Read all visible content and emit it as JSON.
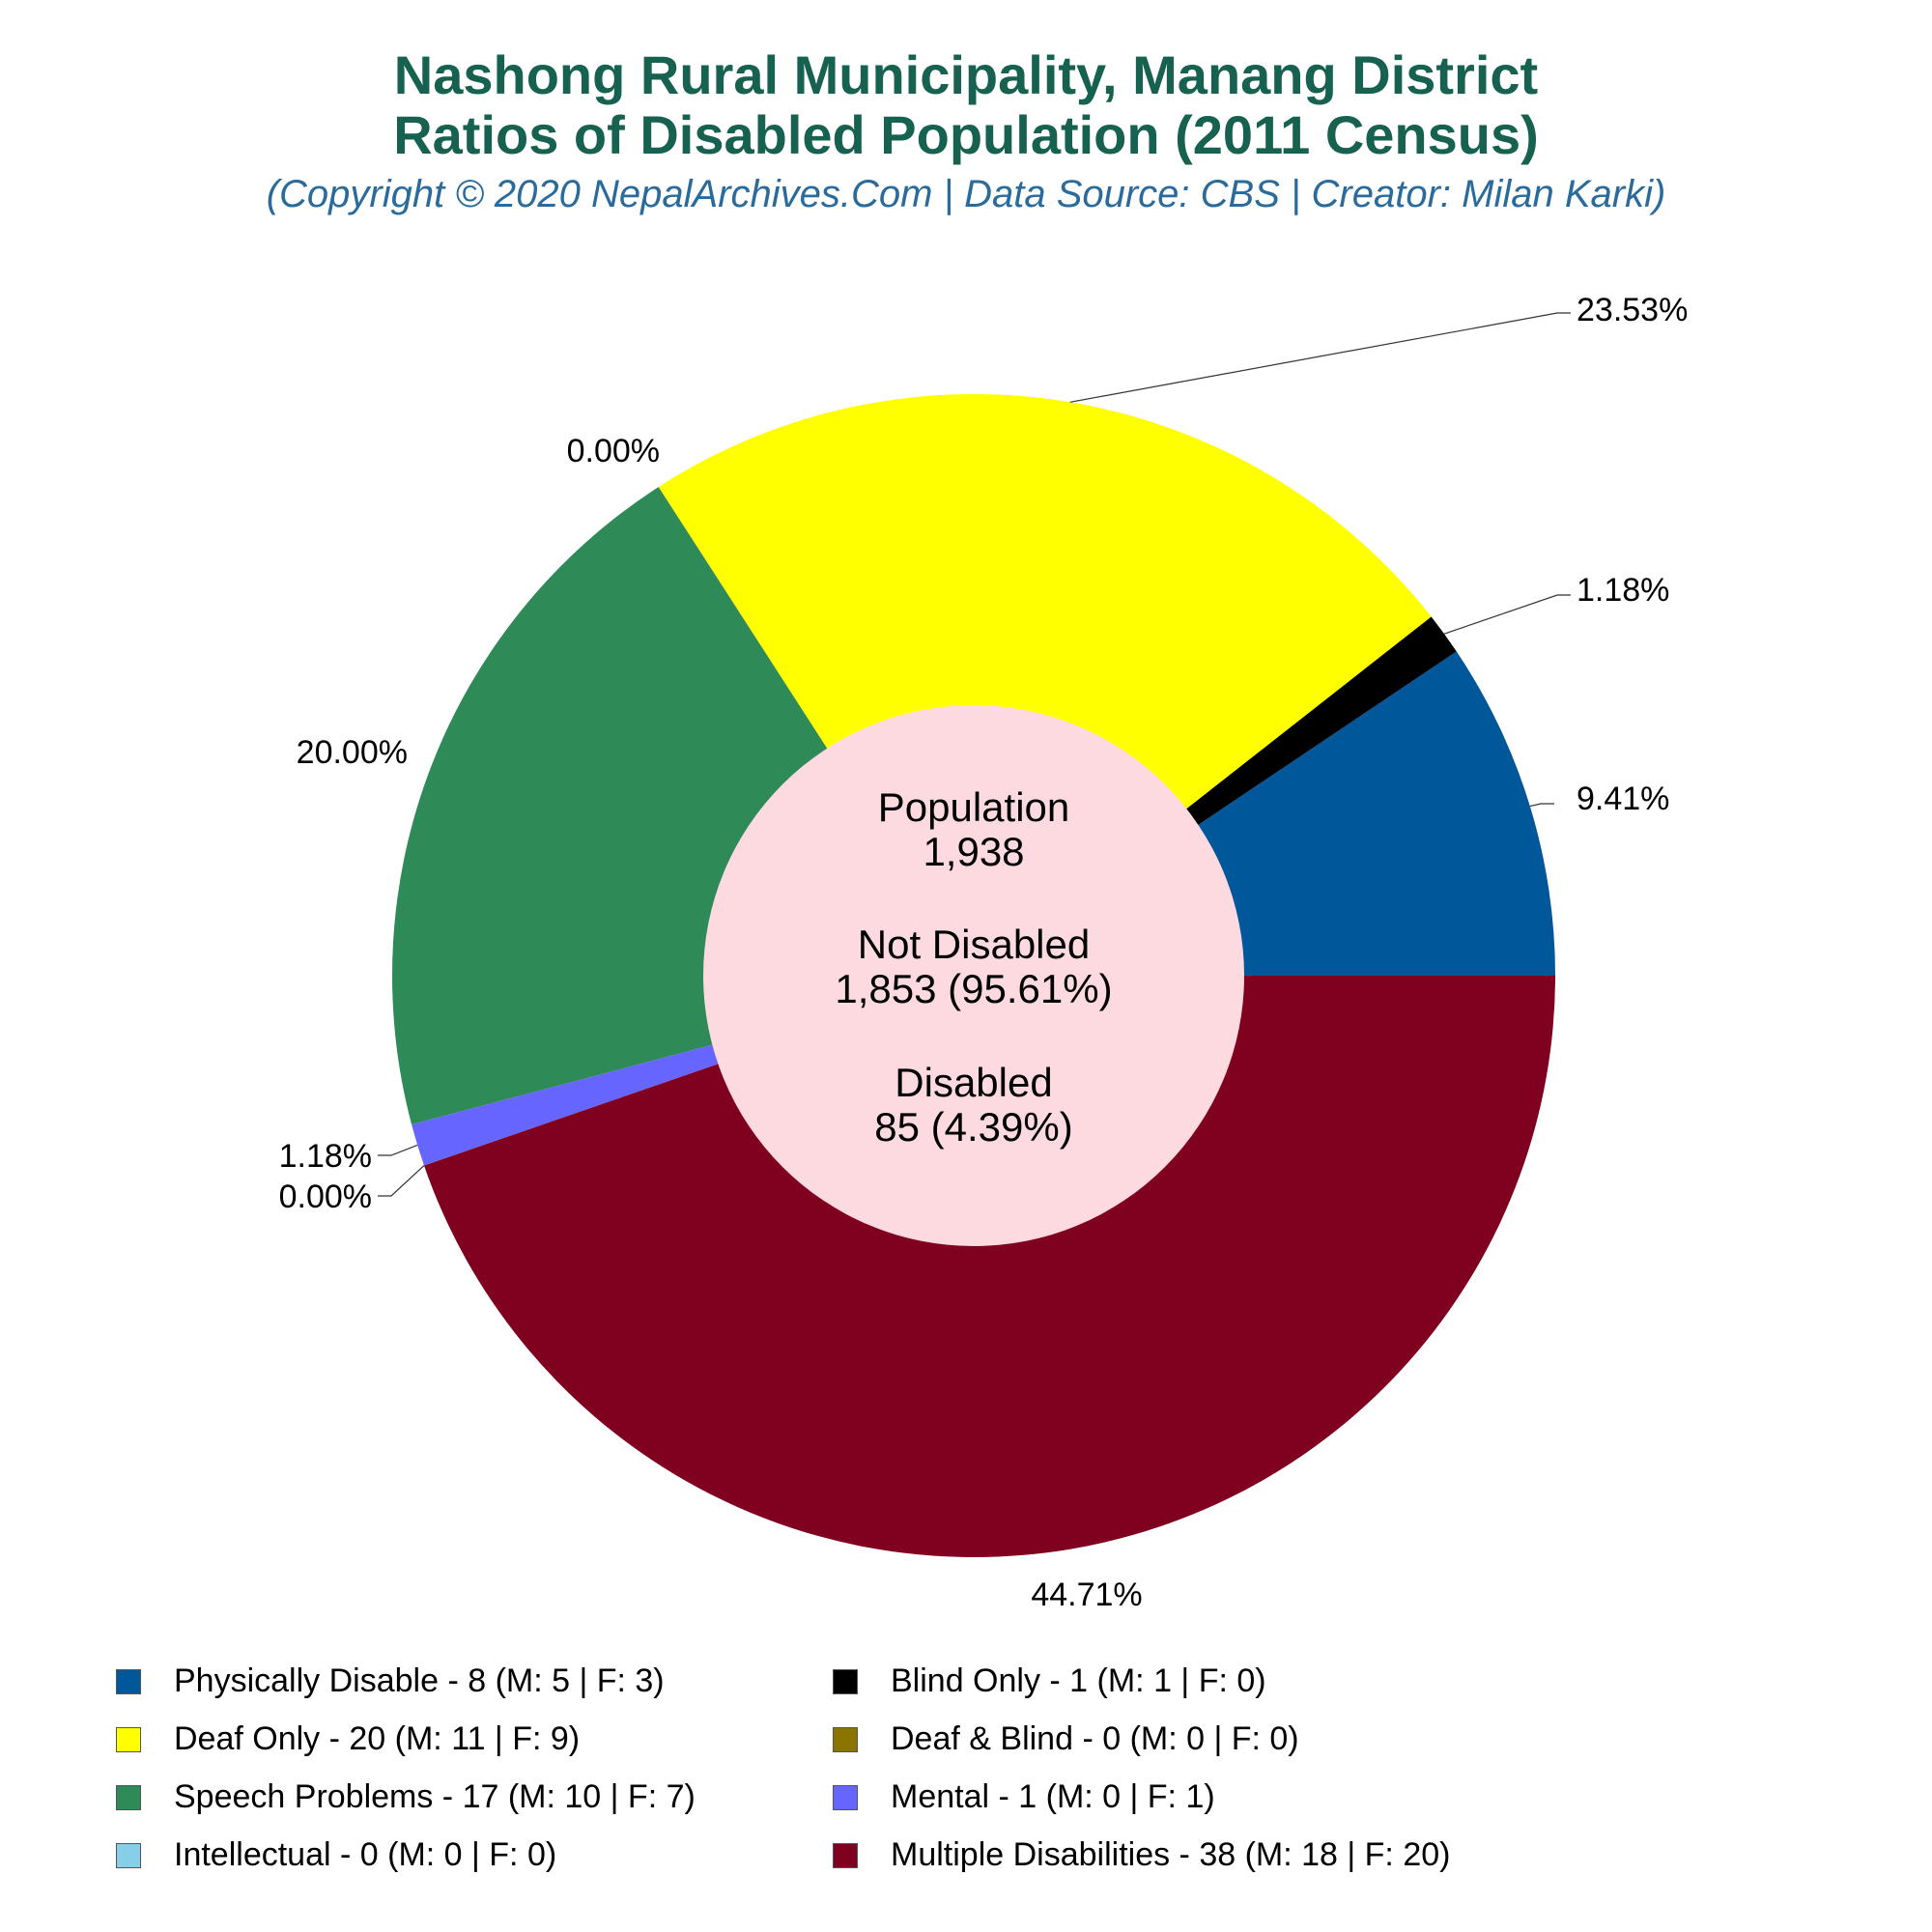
{
  "chart_data": {
    "type": "pie",
    "title_line1": "Nashong Rural Municipality, Manang District",
    "title_line2": "Ratios of Disabled Population (2011 Census)",
    "subtitle": "(Copyright © 2020 NepalArchives.Com | Data Source: CBS | Creator: Milan Karki)",
    "center": {
      "population_label": "Population",
      "population_value": "1,938",
      "not_disabled_label": "Not Disabled",
      "not_disabled_value": "1,853 (95.61%)",
      "disabled_label": "Disabled",
      "disabled_value": "85 (4.39%)"
    },
    "slices": [
      {
        "name": "Physically Disable",
        "value": 8,
        "percent": "9.41%",
        "legend": "Physically Disable - 8 (M: 5 | F: 3)",
        "color": "#00579a"
      },
      {
        "name": "Blind Only",
        "value": 1,
        "percent": "1.18%",
        "legend": "Blind Only - 1 (M: 1 | F: 0)",
        "color": "#000000"
      },
      {
        "name": "Deaf Only",
        "value": 20,
        "percent": "23.53%",
        "legend": "Deaf Only - 20 (M: 11 | F: 9)",
        "color": "#ffff00"
      },
      {
        "name": "Deaf & Blind",
        "value": 0,
        "percent": "0.00%",
        "legend": "Deaf & Blind - 0 (M: 0 | F: 0)",
        "color": "#8b7500"
      },
      {
        "name": "Speech Problems",
        "value": 17,
        "percent": "20.00%",
        "legend": "Speech Problems - 17 (M: 10 | F: 7)",
        "color": "#2e8b57"
      },
      {
        "name": "Mental",
        "value": 1,
        "percent": "1.18%",
        "legend": "Mental - 1 (M: 0 | F: 1)",
        "color": "#6666ff"
      },
      {
        "name": "Intellectual",
        "value": 0,
        "percent": "0.00%",
        "legend": "Intellectual - 0 (M: 0 | F: 0)",
        "color": "#87ceeb"
      },
      {
        "name": "Multiple Disabilities",
        "value": 38,
        "percent": "44.71%",
        "legend": "Multiple Disabilities - 38 (M: 18 | F: 20)",
        "color": "#800020"
      }
    ],
    "legend_order": [
      0,
      1,
      2,
      3,
      4,
      5,
      6,
      7
    ],
    "direction": "counterclockwise",
    "start_angle_deg": 0,
    "hole_color": "#fdd9e0",
    "legend_position": "bottom"
  }
}
